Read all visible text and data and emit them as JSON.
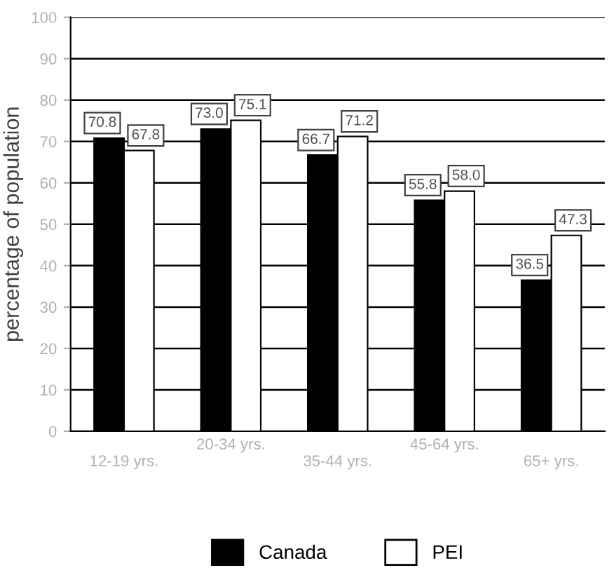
{
  "chart_data": {
    "type": "bar",
    "ylabel": "percentage of population",
    "categories": [
      "12-19 yrs.",
      "20-34 yrs.",
      "35-44 yrs.",
      "45-64 yrs.",
      "65+ yrs."
    ],
    "series": [
      {
        "name": "Canada",
        "color": "#000000",
        "values": [
          70.8,
          73.0,
          66.7,
          55.8,
          36.5
        ],
        "value_labels": [
          "70.8",
          "73.0",
          "66.7",
          "55.8",
          "36.5"
        ]
      },
      {
        "name": "PEI",
        "color": "#ffffff",
        "values": [
          67.8,
          75.1,
          71.2,
          58.0,
          47.3
        ],
        "value_labels": [
          "67.8",
          "75.1",
          "71.2",
          "58.0",
          "47.3"
        ]
      }
    ],
    "ylim": [
      0,
      100
    ],
    "yticks": [
      0,
      10,
      20,
      30,
      40,
      50,
      60,
      70,
      80,
      90,
      100
    ],
    "grid": "y",
    "legend": "bottom"
  }
}
